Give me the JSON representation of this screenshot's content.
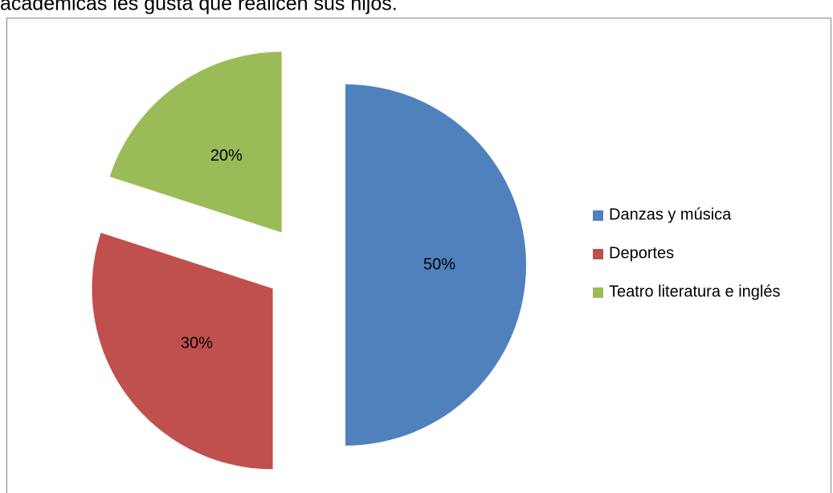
{
  "chart_data": {
    "type": "pie",
    "title": "académicas  les gusta que realicen sus hijos.",
    "categories": [
      "Danzas y música",
      "Deportes",
      "Teatro literatura e inglés"
    ],
    "values": [
      50,
      30,
      20
    ],
    "value_labels": [
      "50%",
      "30%",
      "20%"
    ],
    "colors": [
      "#4f81bd",
      "#c0504d",
      "#9bbb59"
    ],
    "legend": "right"
  }
}
